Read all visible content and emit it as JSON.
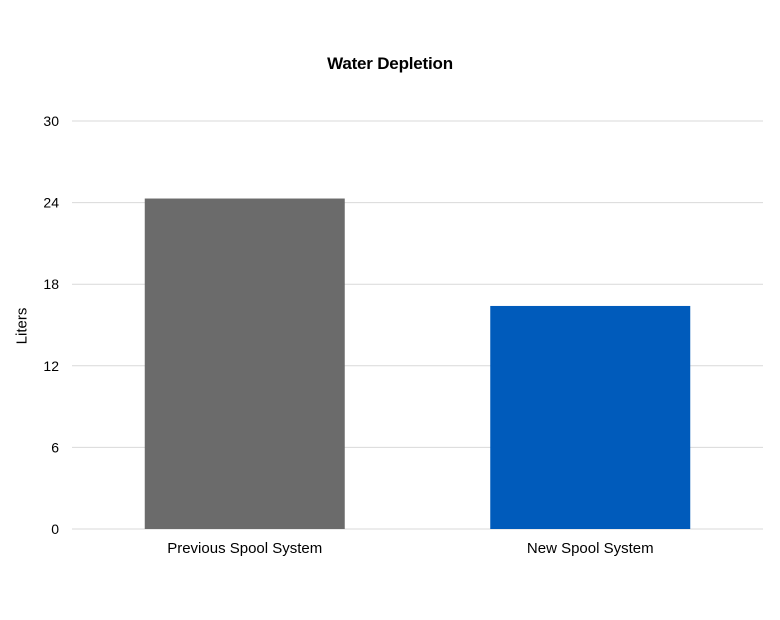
{
  "chart_data": {
    "type": "bar",
    "title": "Water Depletion",
    "xlabel": "",
    "ylabel": "Liters",
    "categories": [
      "Previous Spool System",
      "New Spool System"
    ],
    "values": [
      24.3,
      16.4
    ],
    "bar_colors": [
      "#6b6b6b",
      "#005bbb"
    ],
    "ylim": [
      0,
      30
    ],
    "yticks": [
      0,
      6,
      12,
      18,
      24,
      30
    ],
    "grid": true,
    "legend": "none"
  }
}
